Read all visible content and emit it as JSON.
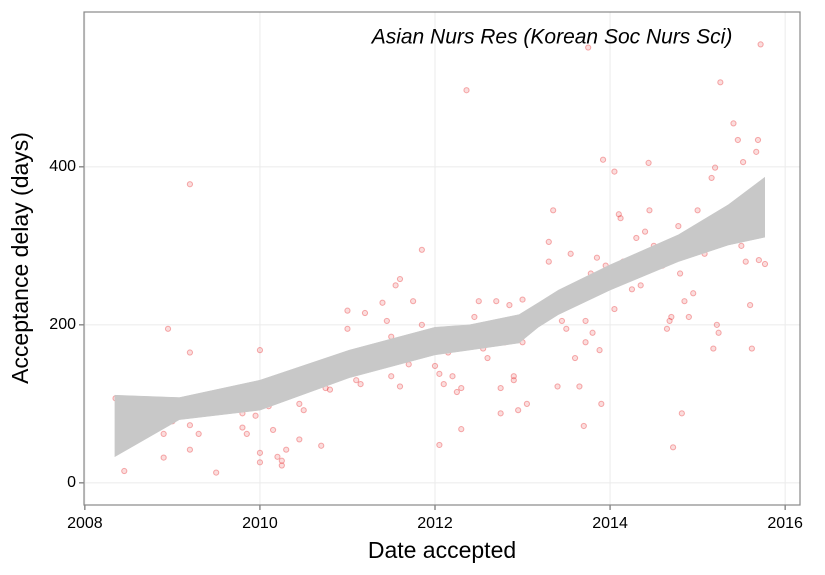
{
  "chart_data": {
    "type": "scatter",
    "annotation": "Asian Nurs Res (Korean Soc Nurs Sci)",
    "x_label": "Date accepted",
    "y_label": "Acceptance delay (days)",
    "color": "#e41a1c",
    "band_color": "#c8c8c8",
    "grid": true,
    "xlim": [
      2007.99,
      2016.17
    ],
    "xticks": [
      2008,
      2010,
      2012,
      2014,
      2016
    ],
    "ylim": [
      -28,
      596
    ],
    "yticks": [
      0,
      200,
      400
    ],
    "x": [
      2008.35,
      2008.4,
      2008.45,
      2008.5,
      2008.5,
      2008.7,
      2008.7,
      2008.75,
      2008.9,
      2008.9,
      2008.95,
      2009.0,
      2009.0,
      2009.2,
      2009.2,
      2009.2,
      2009.2,
      2009.3,
      2009.4,
      2009.5,
      2009.5,
      2009.6,
      2009.8,
      2009.8,
      2009.85,
      2009.9,
      2009.95,
      2010.0,
      2010.0,
      2010.0,
      2010.1,
      2010.15,
      2010.2,
      2010.25,
      2010.25,
      2010.3,
      2010.45,
      2010.45,
      2010.5,
      2010.7,
      2010.75,
      2010.8,
      2010.95,
      2011.0,
      2011.0,
      2011.05,
      2011.1,
      2011.15,
      2011.2,
      2011.3,
      2011.4,
      2011.45,
      2011.5,
      2011.5,
      2011.55,
      2011.6,
      2011.6,
      2011.7,
      2011.75,
      2011.85,
      2011.85,
      2011.85,
      2011.9,
      2012.0,
      2012.05,
      2012.05,
      2012.1,
      2012.15,
      2012.2,
      2012.25,
      2012.3,
      2012.3,
      2012.35,
      2012.36,
      2012.45,
      2012.5,
      2012.55,
      2012.6,
      2012.7,
      2012.75,
      2012.75,
      2012.8,
      2012.85,
      2012.9,
      2012.9,
      2012.95,
      2013.0,
      2013.0,
      2013.05,
      2013.1,
      2013.2,
      2013.3,
      2013.3,
      2013.35,
      2013.4,
      2013.4,
      2013.45,
      2013.5,
      2013.55,
      2013.6,
      2013.65,
      2013.7,
      2013.72,
      2013.72,
      2013.75,
      2013.78,
      2013.8,
      2013.85,
      2013.88,
      2013.9,
      2013.92,
      2013.95,
      2014.05,
      2014.05,
      2014.1,
      2014.12,
      2014.15,
      2014.2,
      2014.25,
      2014.3,
      2014.35,
      2014.4,
      2014.44,
      2014.45,
      2014.5,
      2014.6,
      2014.65,
      2014.68,
      2014.7,
      2014.72,
      2014.78,
      2014.8,
      2014.82,
      2014.85,
      2014.9,
      2014.95,
      2015.0,
      2015.02,
      2015.08,
      2015.12,
      2015.16,
      2015.18,
      2015.18,
      2015.2,
      2015.22,
      2015.24,
      2015.26,
      2015.3,
      2015.41,
      2015.46,
      2015.5,
      2015.52,
      2015.55,
      2015.6,
      2015.62,
      2015.67,
      2015.69,
      2015.72,
      2015.7,
      2015.77
    ],
    "values": [
      107,
      88,
      15,
      70,
      90,
      97,
      65,
      90,
      32,
      62,
      195,
      85,
      78,
      378,
      165,
      73,
      42,
      62,
      90,
      13,
      113,
      100,
      88,
      70,
      62,
      95,
      85,
      168,
      38,
      26,
      97,
      67,
      33,
      28,
      22,
      42,
      55,
      100,
      92,
      47,
      120,
      118,
      138,
      218,
      195,
      160,
      130,
      125,
      215,
      155,
      228,
      205,
      185,
      135,
      250,
      258,
      122,
      150,
      230,
      295,
      200,
      170,
      190,
      148,
      138,
      48,
      125,
      165,
      135,
      115,
      120,
      68,
      195,
      497,
      210,
      230,
      170,
      158,
      230,
      120,
      88,
      178,
      225,
      135,
      130,
      92,
      232,
      178,
      100,
      195,
      220,
      305,
      280,
      345,
      225,
      122,
      205,
      195,
      290,
      158,
      122,
      72,
      205,
      178,
      551,
      265,
      190,
      285,
      168,
      100,
      409,
      275,
      394,
      220,
      340,
      335,
      280,
      265,
      245,
      310,
      250,
      318,
      405,
      345,
      300,
      275,
      195,
      205,
      210,
      45,
      325,
      265,
      88,
      230,
      210,
      240,
      345,
      300,
      290,
      320,
      386,
      330,
      170,
      399,
      200,
      190,
      507,
      305,
      455,
      434,
      300,
      406,
      280,
      225,
      170,
      419,
      434,
      555,
      282,
      277
    ],
    "band": {
      "x": [
        2008.34,
        2009.08,
        2010.0,
        2011.02,
        2012.0,
        2012.39,
        2012.96,
        2013.18,
        2013.41,
        2014.0,
        2014.78,
        2015.35,
        2015.77
      ],
      "upper": [
        111,
        108,
        130,
        168,
        197,
        200,
        213,
        228,
        244,
        276,
        314,
        352,
        387
      ],
      "lower": [
        33,
        80,
        92,
        133,
        162,
        168,
        177,
        197,
        213,
        244,
        280,
        301,
        311
      ]
    }
  }
}
